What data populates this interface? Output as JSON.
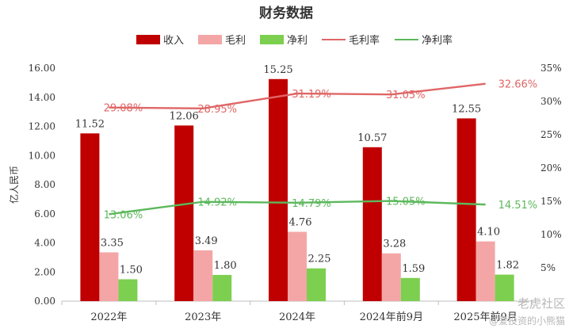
{
  "chart_data": {
    "type": "bar",
    "title": "财务数据",
    "ylabel": "亿人民币",
    "categories": [
      "2022年",
      "2023年",
      "2024年",
      "2024年前9月",
      "2025年前9月"
    ],
    "ylim": [
      0,
      16
    ],
    "y_ticks": [
      "0.00",
      "2.00",
      "4.00",
      "6.00",
      "8.00",
      "10.00",
      "12.00",
      "14.00",
      "16.00"
    ],
    "y2lim": [
      0,
      35
    ],
    "y2_ticks": [
      "5%",
      "10%",
      "15%",
      "20%",
      "25%",
      "30%",
      "35%"
    ],
    "legend_position": "top",
    "series": [
      {
        "name": "收入",
        "kind": "bar",
        "axis": "left",
        "color": "#c00000",
        "values": [
          11.52,
          12.06,
          15.25,
          10.57,
          12.55
        ],
        "labels": [
          "11.52",
          "12.06",
          "15.25",
          "10.57",
          "12.55"
        ]
      },
      {
        "name": "毛利",
        "kind": "bar",
        "axis": "left",
        "color": "#f4a6a6",
        "values": [
          3.35,
          3.49,
          4.76,
          3.28,
          4.1
        ],
        "labels": [
          "3.35",
          "3.49",
          "4.76",
          "3.28",
          "4.10"
        ]
      },
      {
        "name": "净利",
        "kind": "bar",
        "axis": "left",
        "color": "#7ccf4f",
        "values": [
          1.5,
          1.8,
          2.25,
          1.59,
          1.82
        ],
        "labels": [
          "1.50",
          "1.80",
          "2.25",
          "1.59",
          "1.82"
        ]
      },
      {
        "name": "毛利率",
        "kind": "line",
        "axis": "right",
        "color": "#e06666",
        "values": [
          29.08,
          28.95,
          31.19,
          31.05,
          32.66
        ],
        "labels": [
          "29.08%",
          "28.95%",
          "31.19%",
          "31.05%",
          "32.66%"
        ]
      },
      {
        "name": "净利率",
        "kind": "line",
        "axis": "right",
        "color": "#5cb85c",
        "values": [
          13.06,
          14.92,
          14.79,
          15.05,
          14.51
        ],
        "labels": [
          "13.06%",
          "14.92%",
          "14.79%",
          "15.05%",
          "14.51%"
        ]
      }
    ]
  },
  "watermark": {
    "line1": "老虎社区",
    "line2": "@爱投资的小熊猫"
  }
}
